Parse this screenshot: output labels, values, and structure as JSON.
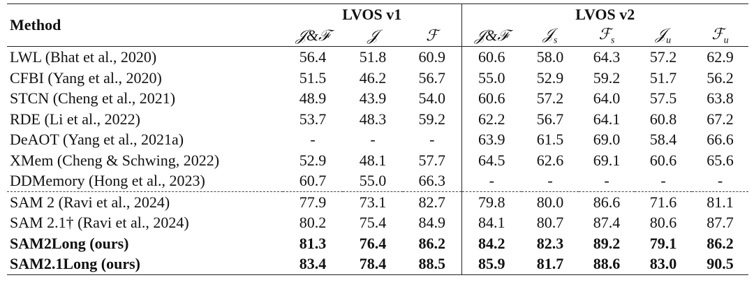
{
  "table": {
    "method_header": "Method",
    "groups": [
      "LVOS v1",
      "LVOS v2"
    ],
    "subheaders": [
      {
        "main": "𝒥&ℱ",
        "sub": ""
      },
      {
        "main": "𝒥",
        "sub": ""
      },
      {
        "main": "ℱ",
        "sub": ""
      },
      {
        "main": "𝒥&ℱ",
        "sub": ""
      },
      {
        "main": "𝒥",
        "sub": "s"
      },
      {
        "main": "ℱ",
        "sub": "s"
      },
      {
        "main": "𝒥",
        "sub": "u"
      },
      {
        "main": "ℱ",
        "sub": "u"
      }
    ],
    "rows": [
      [
        "LWL (Bhat et al., 2020)",
        "56.4",
        "51.8",
        "60.9",
        "60.6",
        "58.0",
        "64.3",
        "57.2",
        "62.9"
      ],
      [
        "CFBI (Yang et al., 2020)",
        "51.5",
        "46.2",
        "56.7",
        "55.0",
        "52.9",
        "59.2",
        "51.7",
        "56.2"
      ],
      [
        "STCN (Cheng et al., 2021)",
        "48.9",
        "43.9",
        "54.0",
        "60.6",
        "57.2",
        "64.0",
        "57.5",
        "63.8"
      ],
      [
        "RDE (Li et al., 2022)",
        "53.7",
        "48.3",
        "59.2",
        "62.2",
        "56.7",
        "64.1",
        "60.8",
        "67.2"
      ],
      [
        "DeAOT (Yang et al., 2021a)",
        "-",
        "-",
        "-",
        "63.9",
        "61.5",
        "69.0",
        "58.4",
        "66.6"
      ],
      [
        "XMem (Cheng & Schwing, 2022)",
        "52.9",
        "48.1",
        "57.7",
        "64.5",
        "62.6",
        "69.1",
        "60.6",
        "65.6"
      ],
      [
        "DDMemory (Hong et al., 2023)",
        "60.7",
        "55.0",
        "66.3",
        "-",
        "-",
        "-",
        "-",
        "-"
      ],
      [
        "SAM 2 (Ravi et al., 2024)",
        "77.9",
        "73.1",
        "82.7",
        "79.8",
        "80.0",
        "86.6",
        "71.6",
        "81.1"
      ],
      [
        "SAM 2.1† (Ravi et al., 2024)",
        "80.2",
        "75.4",
        "84.9",
        "84.1",
        "80.7",
        "87.4",
        "80.6",
        "87.7"
      ],
      [
        "SAM2Long (ours)",
        "81.3",
        "76.4",
        "86.2",
        "84.2",
        "82.3",
        "89.2",
        "79.1",
        "86.2"
      ],
      [
        "SAM2.1Long (ours)",
        "83.4",
        "78.4",
        "88.5",
        "85.9",
        "81.7",
        "88.6",
        "83.0",
        "90.5"
      ]
    ]
  }
}
